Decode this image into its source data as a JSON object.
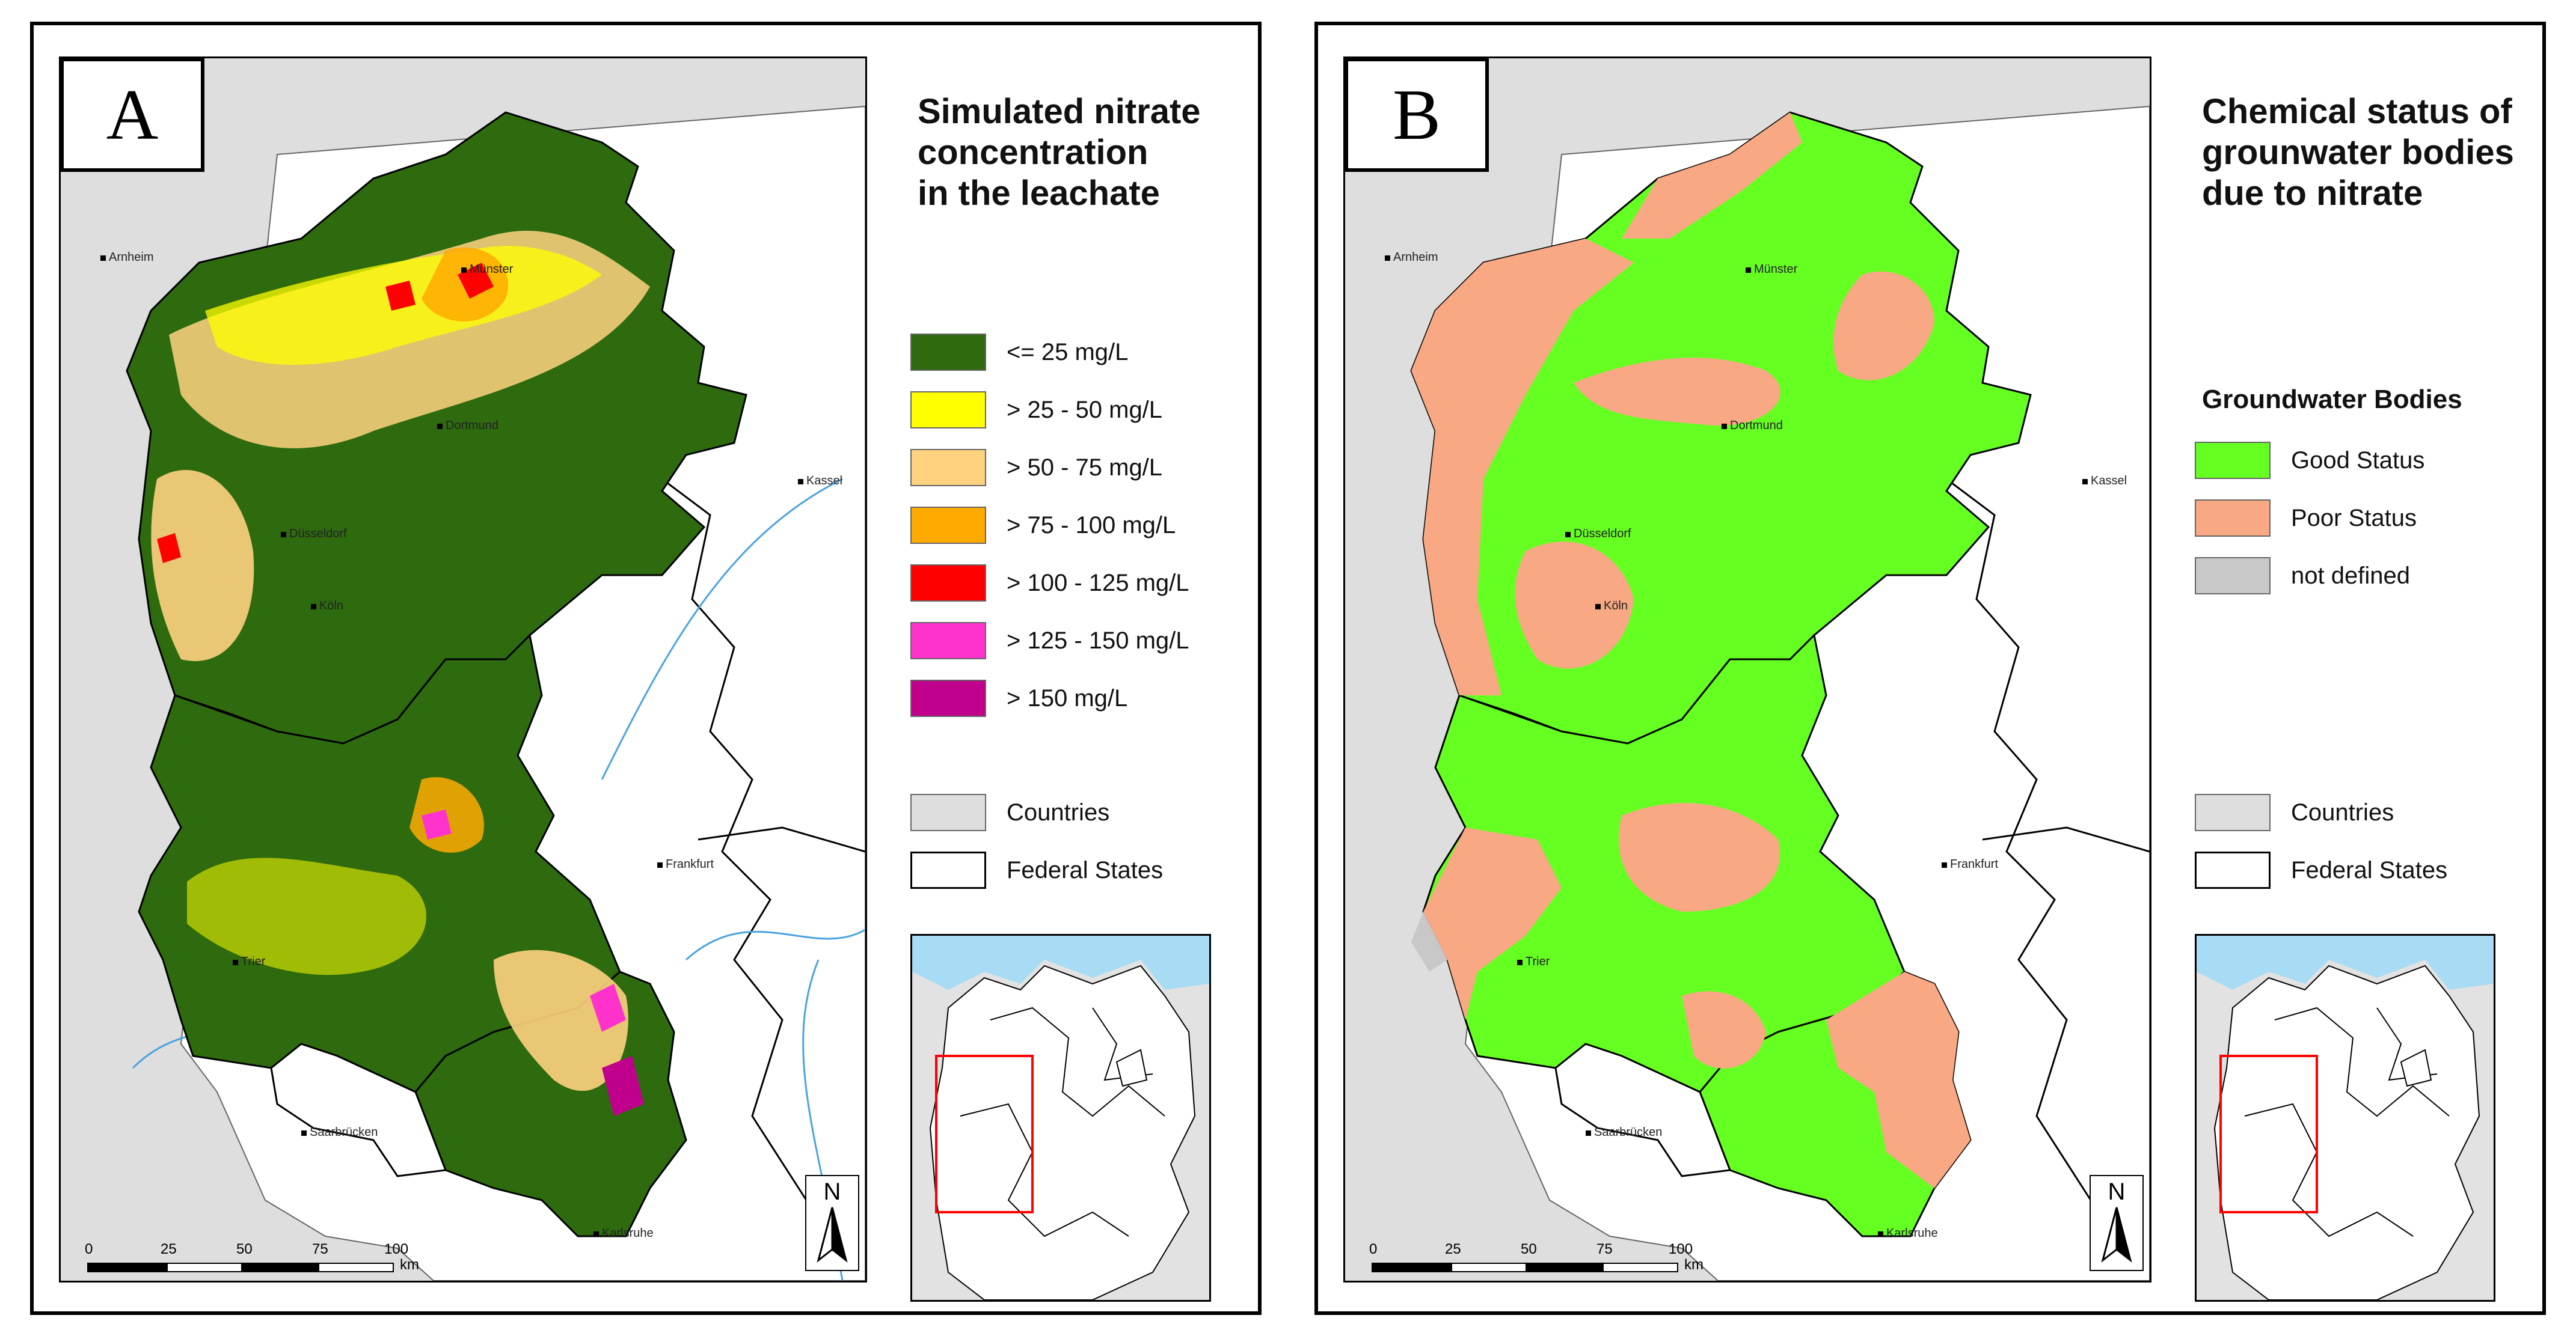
{
  "panel_a": {
    "letter": "A",
    "legend_title_lines": [
      "Simulated nitrate",
      "concentration",
      "in the leachate"
    ],
    "classes": [
      {
        "label": "<= 25 mg/L",
        "color": "#2e6a0e"
      },
      {
        "label": "> 25 - 50 mg/L",
        "color": "#ffff00"
      },
      {
        "label": "> 50 - 75 mg/L",
        "color": "#ffd27f"
      },
      {
        "label": "> 75 - 100 mg/L",
        "color": "#ffaa00"
      },
      {
        "label": "> 100 - 125 mg/L",
        "color": "#ff0000"
      },
      {
        "label": "> 125 - 150 mg/L",
        "color": "#ff33cc"
      },
      {
        "label": "> 150 mg/L",
        "color": "#c0008c"
      }
    ],
    "countries_label": "Countries",
    "federal_states_label": "Federal States",
    "cities": [
      "Arnheim",
      "Münster",
      "Dortmund",
      "Kassel",
      "Düsseldorf",
      "Köln",
      "Frankfurt",
      "Trier",
      "Saarbrücken",
      "Karlsruhe"
    ]
  },
  "panel_b": {
    "letter": "B",
    "legend_title_lines": [
      "Chemical status of",
      "grounwater bodies",
      "due to nitrate"
    ],
    "subheading": "Groundwater Bodies",
    "classes": [
      {
        "label": "Good Status",
        "color": "#66ff22"
      },
      {
        "label": "Poor Status",
        "color": "#f8a883"
      },
      {
        "label": "not defined",
        "color": "#c8c8c8"
      }
    ],
    "countries_label": "Countries",
    "federal_states_label": "Federal States",
    "cities": [
      "Arnheim",
      "Münster",
      "Dortmund",
      "Kassel",
      "Düsseldorf",
      "Köln",
      "Frankfurt",
      "Trier",
      "Saarbrücken",
      "Karlsruhe"
    ]
  },
  "scale": {
    "ticks": [
      "0",
      "25",
      "50",
      "75",
      "100"
    ],
    "unit": "km"
  },
  "north_label": "N",
  "colors": {
    "countries_fill": "#dedede",
    "water": "#a8dcf5",
    "rivers": "#4aa3df",
    "inset_box": "#ff0000"
  }
}
